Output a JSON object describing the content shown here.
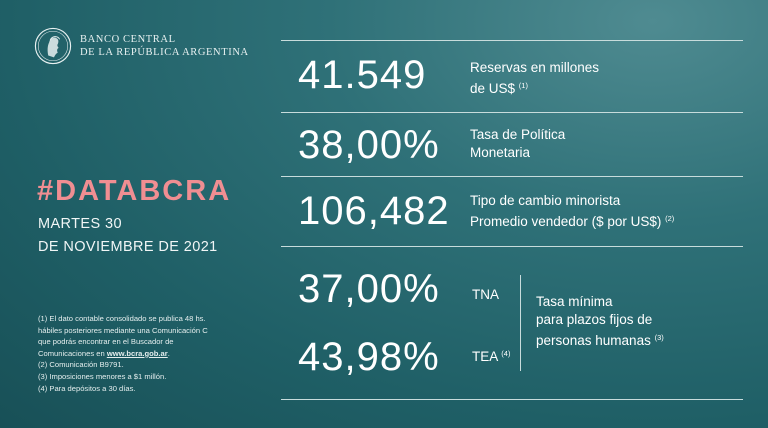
{
  "header": {
    "bank_line1": "BANCO CENTRAL",
    "bank_line2": "DE LA REPÚBLICA ARGENTINA",
    "logo_icon": "bcra-seal-icon"
  },
  "hashtag": "#DATABCRA",
  "date_line1": "MARTES 30",
  "date_line2": "DE NOVIEMBRE DE 2021",
  "indicators": {
    "reservas": {
      "value": "41.549",
      "label1": "Reservas en millones",
      "label2": "de US$",
      "note": "(1)"
    },
    "tasa_politica": {
      "value": "38,00%",
      "label1": "Tasa de Política",
      "label2": "Monetaria"
    },
    "tipo_cambio": {
      "value": "106,482",
      "label1": "Tipo de cambio minorista",
      "label2": "Promedio vendedor  ($ por US$)",
      "note": "(2)"
    },
    "plazo_fijo": {
      "tna_value": "37,00%",
      "tna_label": "TNA",
      "tea_value": "43,98%",
      "tea_label": "TEA",
      "tea_note": "(4)",
      "desc1": "Tasa mínima",
      "desc2": "para plazos fijos de",
      "desc3": "personas humanas",
      "desc_note": "(3)"
    }
  },
  "notes": {
    "n1a": "(1) El dato contable consolidado se publica 48 hs.",
    "n1b": "hábiles posteriores mediante una Comunicación C",
    "n1c": "que podrás encontrar en el Buscador de",
    "n1d_prefix": "Comunicaciones en ",
    "n1d_link": "www.bcra.gob.ar",
    "n1d_suffix": ".",
    "n2": "(2) Comunicación B9791.",
    "n3": "(3) Imposiciones menores a $1 millón.",
    "n4": "(4) Para depósitos a 30 días."
  },
  "colors": {
    "background": "#2f7178",
    "accent": "#f08e92"
  }
}
